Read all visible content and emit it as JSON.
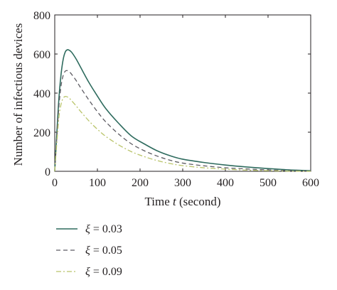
{
  "chart_data": {
    "type": "line",
    "xlabel_prefix": "Time ",
    "xlabel_var": "t",
    "xlabel_suffix": " (second)",
    "ylabel": "Number of infectious devices",
    "xlim": [
      0,
      600
    ],
    "ylim": [
      0,
      800
    ],
    "xticks": [
      "0",
      "100",
      "200",
      "300",
      "400",
      "500",
      "600"
    ],
    "yticks": [
      "0",
      "200",
      "400",
      "600",
      "800"
    ],
    "grid": false,
    "legend_position": "bottom-left, below plot",
    "series": [
      {
        "name": "ξ = 0.03",
        "legend_symbol": "ξ",
        "legend_value": " = 0.03",
        "color": "#2e6b5e",
        "dash": "solid",
        "x": [
          0,
          5,
          10,
          15,
          20,
          25,
          30,
          35,
          40,
          50,
          60,
          80,
          100,
          120,
          150,
          180,
          210,
          240,
          270,
          300,
          350,
          400,
          450,
          500,
          550,
          600
        ],
        "y": [
          0,
          200,
          380,
          500,
          575,
          612,
          622,
          618,
          608,
          575,
          535,
          455,
          385,
          320,
          245,
          180,
          140,
          105,
          80,
          62,
          45,
          32,
          22,
          14,
          7,
          3
        ]
      },
      {
        "name": "ξ = 0.05",
        "legend_symbol": "ξ",
        "legend_value": " = 0.05",
        "color": "#5e5c63",
        "dash": "dashed",
        "x": [
          0,
          5,
          10,
          15,
          20,
          25,
          30,
          35,
          40,
          50,
          60,
          80,
          100,
          120,
          150,
          180,
          210,
          240,
          270,
          300,
          350,
          400,
          450,
          500,
          550,
          600
        ],
        "y": [
          0,
          180,
          340,
          440,
          492,
          513,
          515,
          508,
          495,
          465,
          430,
          365,
          305,
          252,
          190,
          140,
          105,
          78,
          57,
          42,
          28,
          18,
          12,
          7,
          3,
          1
        ]
      },
      {
        "name": "ξ = 0.09",
        "legend_symbol": "ξ",
        "legend_value": " = 0.09",
        "color": "#b9c46a",
        "dash": "dashdot",
        "x": [
          0,
          5,
          10,
          15,
          20,
          25,
          30,
          35,
          40,
          50,
          60,
          80,
          100,
          120,
          150,
          180,
          210,
          240,
          270,
          300,
          350,
          400,
          450,
          500,
          550,
          600
        ],
        "y": [
          0,
          150,
          280,
          345,
          375,
          383,
          380,
          372,
          360,
          335,
          308,
          258,
          215,
          178,
          135,
          100,
          75,
          55,
          40,
          29,
          18,
          11,
          6,
          3,
          1,
          0
        ]
      }
    ]
  }
}
